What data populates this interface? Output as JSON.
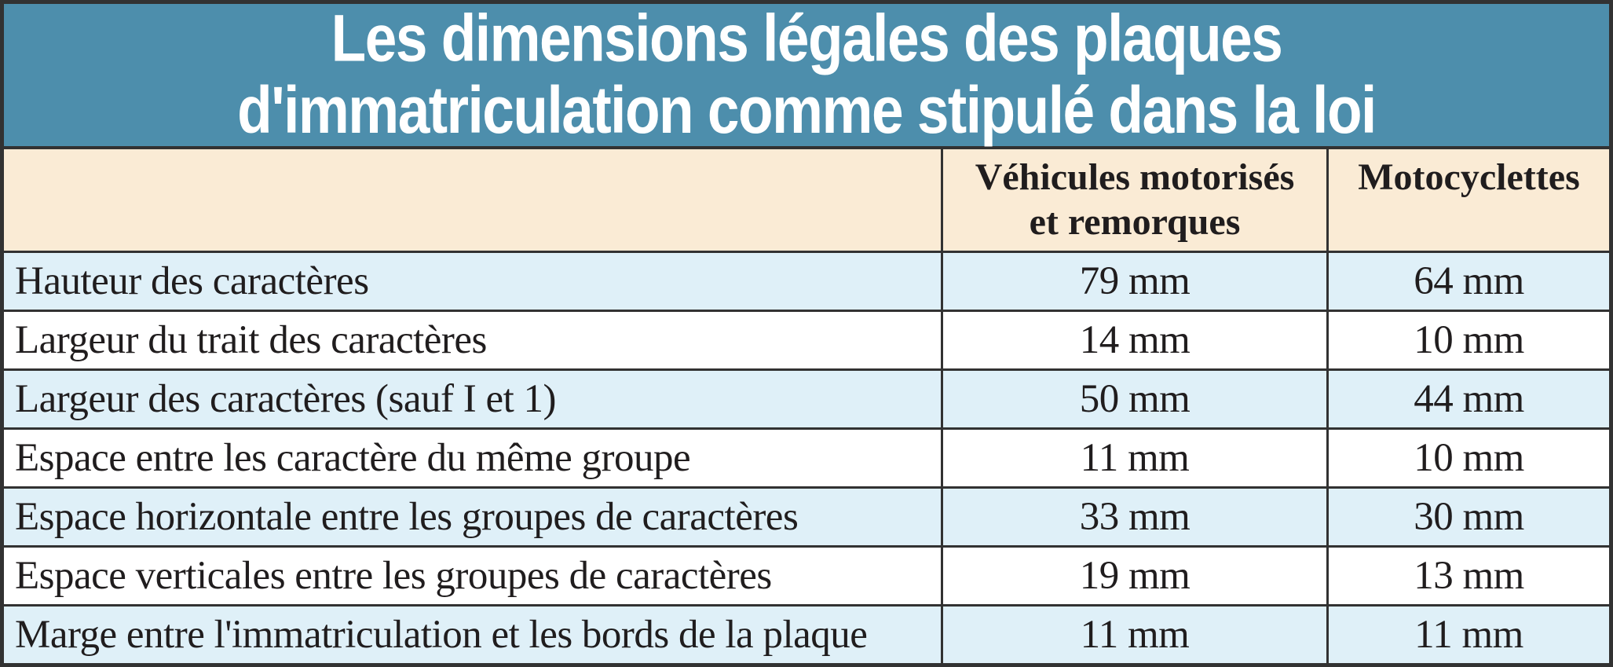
{
  "title": {
    "line1": "Les dimensions légales des plaques",
    "line2": "d'immatriculation comme stipulé dans la loi"
  },
  "table": {
    "header": {
      "vehicles_line1": "Véhicules motorisés",
      "vehicles_line2": "et remorques",
      "motorcycles": "Motocyclettes"
    },
    "rows": [
      {
        "label": "Hauteur des caractères",
        "vehicles": "79 mm",
        "motorcycles": "64 mm"
      },
      {
        "label": "Largeur du trait des caractères",
        "vehicles": "14 mm",
        "motorcycles": "10 mm"
      },
      {
        "label": "Largeur des caractères (sauf I et 1)",
        "vehicles": "50 mm",
        "motorcycles": "44 mm"
      },
      {
        "label": "Espace entre les caractère du même groupe",
        "vehicles": "11 mm",
        "motorcycles": "10 mm"
      },
      {
        "label": "Espace horizontale entre les groupes de caractères",
        "vehicles": "33 mm",
        "motorcycles": "30 mm"
      },
      {
        "label": "Espace verticales entre les groupes de caractères",
        "vehicles": "19 mm",
        "motorcycles": "13 mm"
      },
      {
        "label": "Marge entre l'immatriculation et les bords de la plaque",
        "vehicles": "11 mm",
        "motorcycles": "11 mm"
      }
    ]
  },
  "chart_data": {
    "type": "table",
    "title": "Les dimensions légales des plaques d'immatriculation comme stipulé dans la loi",
    "columns": [
      "",
      "Véhicules motorisés et remorques",
      "Motocyclettes"
    ],
    "rows": [
      [
        "Hauteur des caractères",
        "79 mm",
        "64 mm"
      ],
      [
        "Largeur du trait des caractères",
        "14 mm",
        "10 mm"
      ],
      [
        "Largeur des caractères (sauf I et 1)",
        "50 mm",
        "44 mm"
      ],
      [
        "Espace entre les caractère du même groupe",
        "11 mm",
        "10 mm"
      ],
      [
        "Espace horizontale entre les groupes de caractères",
        "33 mm",
        "30 mm"
      ],
      [
        "Espace verticales entre les groupes de caractères",
        "19 mm",
        "13 mm"
      ],
      [
        "Marge entre l'immatriculation et les bords de la plaque",
        "11 mm",
        "11 mm"
      ]
    ],
    "values_unit": "mm",
    "series": [
      {
        "name": "Véhicules motorisés et remorques",
        "values": [
          79,
          14,
          50,
          11,
          33,
          19,
          11
        ]
      },
      {
        "name": "Motocyclettes",
        "values": [
          64,
          10,
          44,
          10,
          30,
          13,
          11
        ]
      }
    ]
  },
  "colors": {
    "title_background": "#4D8EAC",
    "title_text": "#FFFFFF",
    "header_background": "#FAEBD5",
    "row_alternate_background": "#DFF0F8",
    "row_background": "#FFFFFF",
    "grid_line": "#323232",
    "body_text": "#201D1E"
  }
}
